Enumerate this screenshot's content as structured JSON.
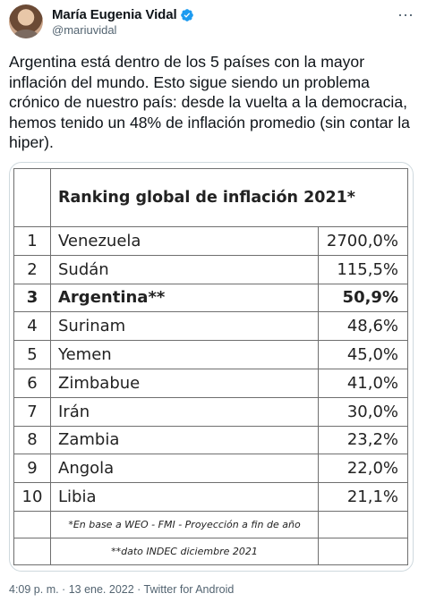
{
  "author": {
    "name": "María Eugenia Vidal",
    "handle": "@mariuvidal",
    "verified_icon": "verified-badge-icon",
    "accent": "#1d9bf0"
  },
  "tweet": {
    "text": "Argentina está dentro de los 5 países con la mayor inflación del mundo. Esto sigue siendo un problema crónico de nuestro país: desde la vuelta a la democracia, hemos tenido un 48% de inflación promedio (sin contar la hiper)."
  },
  "table": {
    "title": "Ranking global de inflación 2021*",
    "rows": [
      {
        "rank": "1",
        "country": "Venezuela",
        "value": "2700,0%"
      },
      {
        "rank": "2",
        "country": "Sudán",
        "value": "115,5%"
      },
      {
        "rank": "3",
        "country": "Argentina**",
        "value": "50,9%"
      },
      {
        "rank": "4",
        "country": "Surinam",
        "value": "48,6%"
      },
      {
        "rank": "5",
        "country": "Yemen",
        "value": "45,0%"
      },
      {
        "rank": "6",
        "country": "Zimbabue",
        "value": "41,0%"
      },
      {
        "rank": "7",
        "country": "Irán",
        "value": "30,0%"
      },
      {
        "rank": "8",
        "country": "Zambia",
        "value": "23,2%"
      },
      {
        "rank": "9",
        "country": "Angola",
        "value": "22,0%"
      },
      {
        "rank": "10",
        "country": "Libia",
        "value": "21,1%"
      }
    ],
    "footnote1": "*En base a WEO - FMI - Proyección a fin de año",
    "footnote2": "**dato INDEC diciembre 2021"
  },
  "meta": {
    "timestamp": "4:09 p. m. · 13 ene. 2022 · Twitter for Android"
  }
}
